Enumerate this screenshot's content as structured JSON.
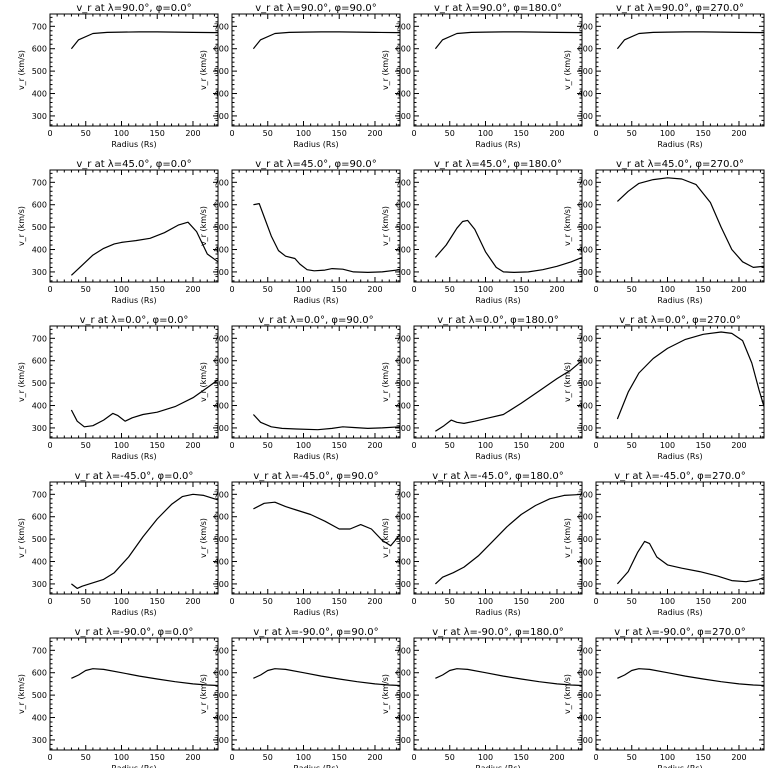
{
  "chart_data": {
    "type": "line",
    "grid": false,
    "xlabel": "Radius (Rs)",
    "ylabel": "v_r (km/s)",
    "xlim": [
      0,
      235
    ],
    "ylim": [
      255,
      755
    ],
    "xticks": [
      0,
      50,
      100,
      150,
      200
    ],
    "yticks": [
      300,
      400,
      500,
      600,
      700
    ],
    "panels": [
      {
        "title": "v_r at λ=90.0°, φ=0.0°",
        "x": [
          30,
          40,
          60,
          80,
          100,
          125,
          150,
          200,
          235
        ],
        "y": [
          600,
          640,
          668,
          673,
          674,
          675,
          675,
          673,
          672
        ]
      },
      {
        "title": "v_r at λ=90.0°, φ=90.0°",
        "x": [
          30,
          40,
          60,
          80,
          100,
          125,
          150,
          200,
          235
        ],
        "y": [
          600,
          640,
          668,
          673,
          674,
          675,
          675,
          673,
          672
        ]
      },
      {
        "title": "v_r at λ=90.0°, φ=180.0°",
        "x": [
          30,
          40,
          60,
          80,
          100,
          125,
          150,
          200,
          235
        ],
        "y": [
          600,
          640,
          668,
          673,
          674,
          675,
          675,
          673,
          672
        ]
      },
      {
        "title": "v_r at λ=90.0°, φ=270.0°",
        "x": [
          30,
          40,
          60,
          80,
          100,
          125,
          150,
          200,
          235
        ],
        "y": [
          600,
          640,
          668,
          673,
          674,
          675,
          675,
          673,
          672
        ]
      },
      {
        "title": "v_r at λ=45.0°, φ=0.0°",
        "x": [
          30,
          45,
          60,
          75,
          90,
          100,
          120,
          140,
          160,
          180,
          193,
          205,
          220,
          235
        ],
        "y": [
          285,
          330,
          375,
          405,
          425,
          432,
          440,
          450,
          475,
          510,
          522,
          480,
          380,
          345
        ]
      },
      {
        "title": "v_r at λ=45.0°, φ=90.0°",
        "x": [
          30,
          38,
          45,
          55,
          65,
          75,
          88,
          95,
          105,
          115,
          130,
          140,
          155,
          170,
          190,
          210,
          235
        ],
        "y": [
          600,
          605,
          545,
          460,
          395,
          370,
          360,
          335,
          310,
          305,
          308,
          315,
          312,
          300,
          298,
          300,
          310
        ]
      },
      {
        "title": "v_r at λ=45.0°, φ=180.0°",
        "x": [
          30,
          45,
          60,
          68,
          75,
          85,
          100,
          115,
          125,
          140,
          160,
          180,
          200,
          220,
          235
        ],
        "y": [
          365,
          420,
          495,
          525,
          530,
          490,
          390,
          320,
          300,
          298,
          300,
          310,
          325,
          345,
          365
        ]
      },
      {
        "title": "v_r at λ=45.0°, φ=270.0°",
        "x": [
          30,
          45,
          60,
          80,
          100,
          120,
          140,
          160,
          175,
          190,
          205,
          220,
          235
        ],
        "y": [
          615,
          660,
          695,
          712,
          720,
          715,
          690,
          610,
          500,
          400,
          345,
          320,
          325
        ]
      },
      {
        "title": "v_r at λ=0.0°, φ=0.0°",
        "x": [
          30,
          38,
          48,
          60,
          75,
          88,
          95,
          105,
          115,
          130,
          150,
          175,
          200,
          220,
          235
        ],
        "y": [
          380,
          330,
          305,
          310,
          335,
          365,
          355,
          330,
          345,
          360,
          370,
          395,
          435,
          480,
          515
        ]
      },
      {
        "title": "v_r at λ=0.0°, φ=90.0°",
        "x": [
          30,
          40,
          55,
          70,
          90,
          120,
          140,
          155,
          170,
          190,
          210,
          235
        ],
        "y": [
          360,
          325,
          305,
          298,
          295,
          292,
          298,
          305,
          302,
          298,
          300,
          305
        ]
      },
      {
        "title": "v_r at λ=0.0°, φ=180.0°",
        "x": [
          30,
          42,
          52,
          60,
          70,
          85,
          105,
          125,
          150,
          175,
          200,
          220,
          235
        ],
        "y": [
          285,
          310,
          335,
          325,
          320,
          330,
          345,
          360,
          410,
          465,
          520,
          560,
          600
        ]
      },
      {
        "title": "v_r at λ=0.0°, φ=270.0°",
        "x": [
          30,
          45,
          60,
          80,
          100,
          125,
          150,
          175,
          190,
          205,
          218,
          228,
          235
        ],
        "y": [
          340,
          460,
          545,
          610,
          655,
          695,
          718,
          728,
          722,
          690,
          590,
          470,
          395
        ]
      },
      {
        "title": "v_r at λ=-45.0°, φ=0.0°",
        "x": [
          30,
          38,
          45,
          60,
          75,
          90,
          110,
          130,
          150,
          170,
          185,
          200,
          215,
          235
        ],
        "y": [
          300,
          280,
          290,
          305,
          320,
          350,
          420,
          510,
          590,
          655,
          690,
          700,
          695,
          675
        ]
      },
      {
        "title": "v_r at λ=-45.0°, φ=90.0°",
        "x": [
          30,
          45,
          60,
          75,
          90,
          110,
          130,
          150,
          165,
          180,
          195,
          210,
          222,
          235
        ],
        "y": [
          635,
          660,
          665,
          645,
          630,
          610,
          580,
          545,
          545,
          565,
          545,
          495,
          470,
          520
        ]
      },
      {
        "title": "v_r at λ=-45.0°, φ=180.0°",
        "x": [
          30,
          40,
          55,
          70,
          90,
          110,
          130,
          150,
          170,
          190,
          210,
          225,
          235
        ],
        "y": [
          300,
          330,
          350,
          375,
          425,
          490,
          555,
          610,
          650,
          680,
          695,
          698,
          700
        ]
      },
      {
        "title": "v_r at λ=-45.0°, φ=270.0°",
        "x": [
          30,
          45,
          58,
          68,
          75,
          85,
          100,
          120,
          145,
          170,
          190,
          210,
          225,
          235
        ],
        "y": [
          300,
          355,
          440,
          490,
          480,
          420,
          385,
          370,
          355,
          335,
          315,
          310,
          318,
          328
        ]
      },
      {
        "title": "v_r at λ=-90.0°, φ=0.0°",
        "x": [
          30,
          40,
          50,
          60,
          75,
          100,
          125,
          150,
          175,
          200,
          220,
          235
        ],
        "y": [
          575,
          590,
          610,
          618,
          615,
          600,
          585,
          572,
          560,
          550,
          545,
          543
        ]
      },
      {
        "title": "v_r at λ=-90.0°, φ=90.0°",
        "x": [
          30,
          40,
          50,
          60,
          75,
          100,
          125,
          150,
          175,
          200,
          220,
          235
        ],
        "y": [
          575,
          590,
          610,
          618,
          615,
          600,
          585,
          572,
          560,
          550,
          545,
          543
        ]
      },
      {
        "title": "v_r at λ=-90.0°, φ=180.0°",
        "x": [
          30,
          40,
          50,
          60,
          75,
          100,
          125,
          150,
          175,
          200,
          220,
          235
        ],
        "y": [
          575,
          590,
          610,
          618,
          615,
          600,
          585,
          572,
          560,
          550,
          545,
          543
        ]
      },
      {
        "title": "v_r at λ=-90.0°, φ=270.0°",
        "x": [
          30,
          40,
          50,
          60,
          75,
          100,
          125,
          150,
          175,
          200,
          220,
          235
        ],
        "y": [
          575,
          590,
          610,
          618,
          615,
          600,
          585,
          572,
          560,
          550,
          545,
          543
        ]
      }
    ]
  }
}
